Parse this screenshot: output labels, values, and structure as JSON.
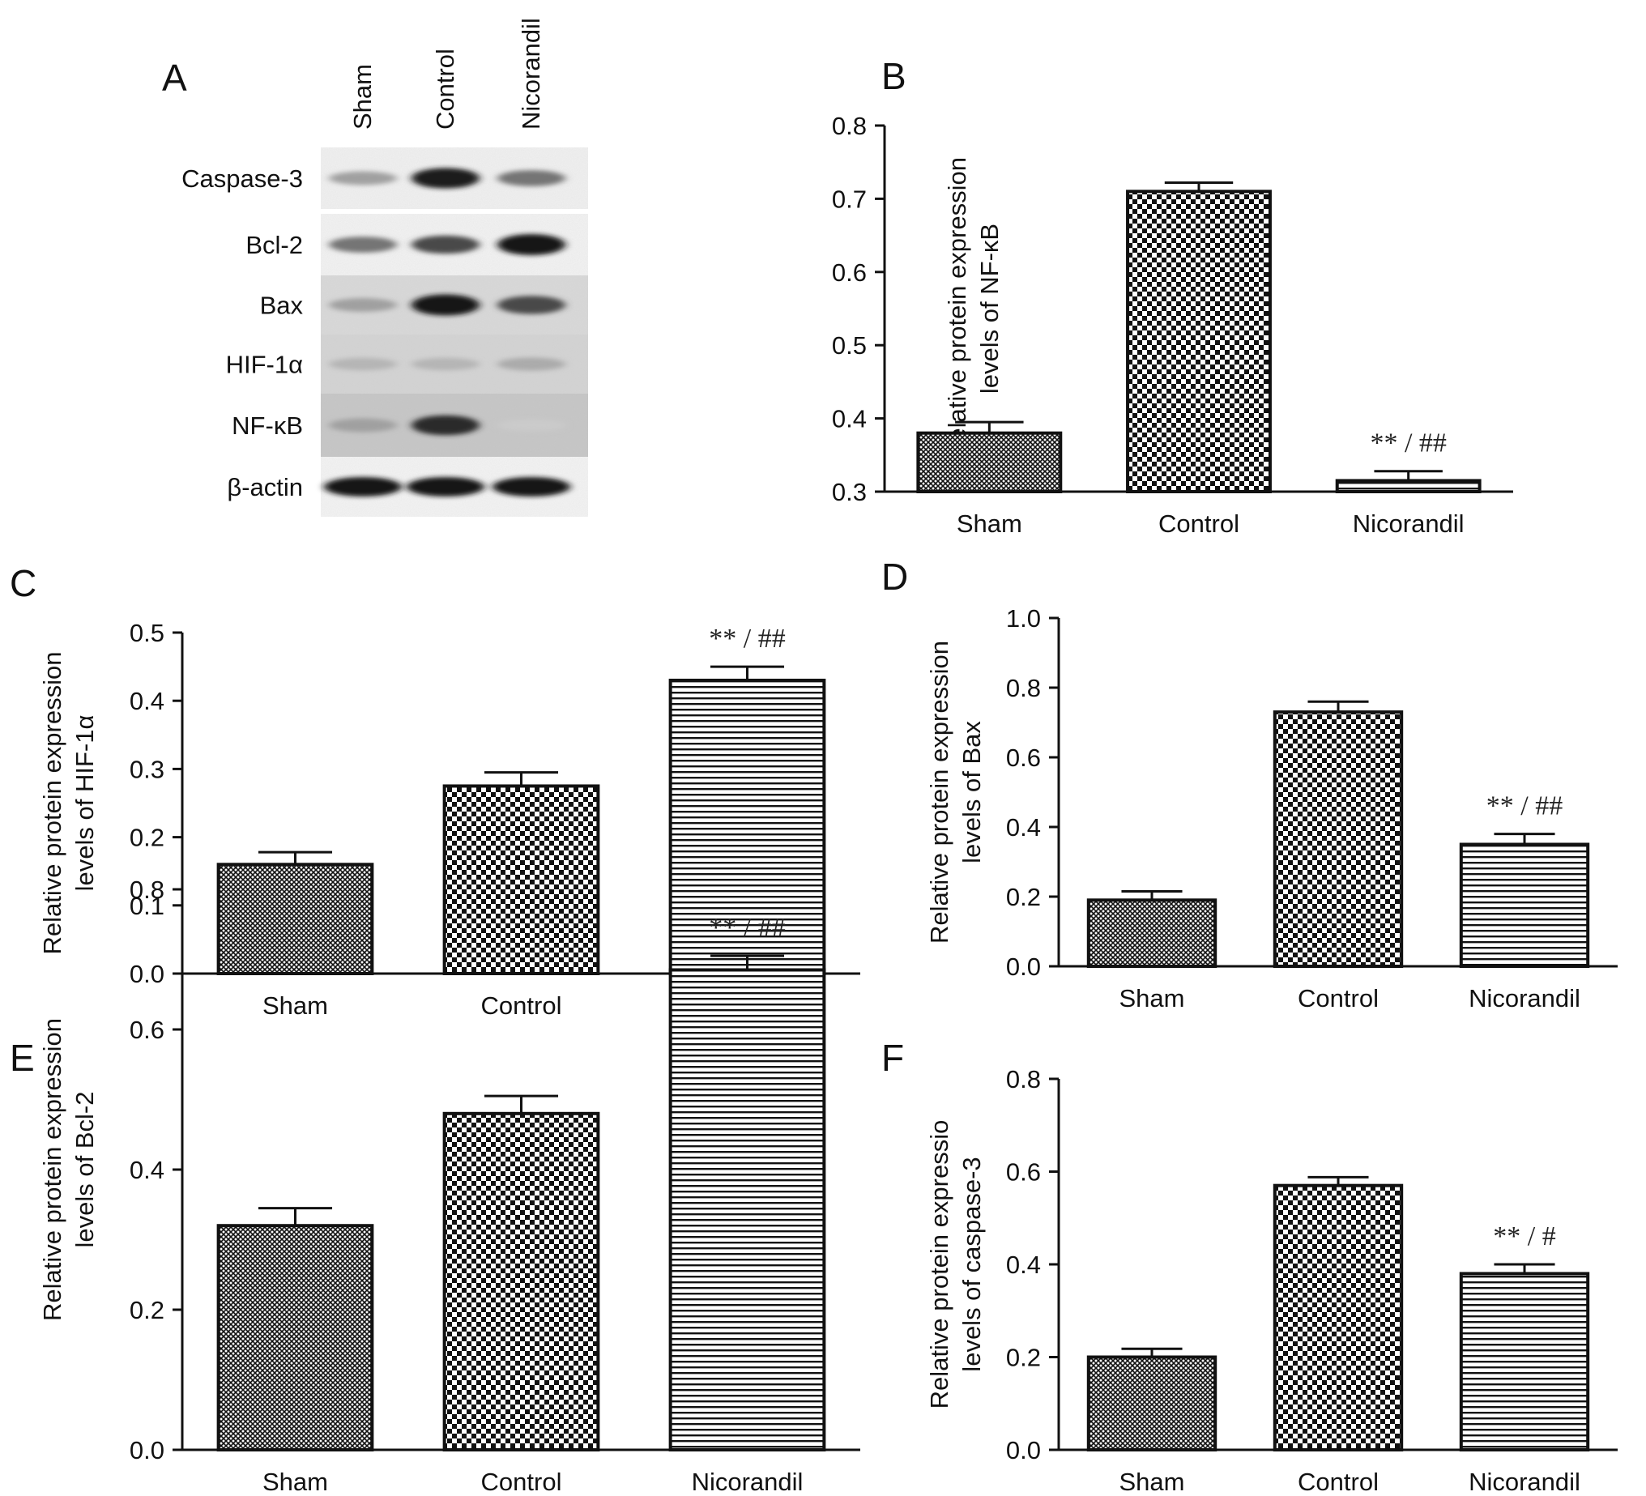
{
  "blot": {
    "letter": "A",
    "lanes": [
      "Sham",
      "Control",
      "Nicorandil"
    ],
    "proteins": [
      "Caspase-3",
      "Bcl-2",
      "Bax",
      "HIF-1α",
      "NF-κB",
      "β-actin"
    ],
    "band_intensity": [
      [
        0.35,
        0.95,
        0.55
      ],
      [
        0.55,
        0.75,
        1.0
      ],
      [
        0.35,
        1.0,
        0.75
      ],
      [
        0.25,
        0.25,
        0.3
      ],
      [
        0.35,
        0.9,
        0.15
      ],
      [
        1.0,
        1.0,
        1.0
      ]
    ]
  },
  "chart_data": [
    {
      "letter": "B",
      "type": "bar",
      "categories": [
        "Sham",
        "Control",
        "Nicorandil"
      ],
      "values": [
        0.38,
        0.71,
        0.315
      ],
      "errors": [
        0.015,
        0.012,
        0.013
      ],
      "ylabel": [
        "Relative protein expression",
        "levels of NF-κB"
      ],
      "ylim": [
        0.3,
        0.8
      ],
      "yticks": [
        "0.3",
        "0.4",
        "0.5",
        "0.6",
        "0.7",
        "0.8"
      ],
      "annotations": [
        "",
        "",
        "** / ##"
      ],
      "patterns": [
        "crosshatch",
        "checker",
        "stripes"
      ]
    },
    {
      "letter": "C",
      "type": "bar",
      "categories": [
        "Sham",
        "Control",
        "Nicorandil"
      ],
      "values": [
        0.16,
        0.275,
        0.43
      ],
      "errors": [
        0.018,
        0.02,
        0.02
      ],
      "ylabel": [
        "Relative protein expression",
        "levels of HIF-1α"
      ],
      "ylim": [
        0.0,
        0.5
      ],
      "yticks": [
        "0.0",
        "0.1",
        "0.2",
        "0.3",
        "0.4",
        "0.5"
      ],
      "annotations": [
        "",
        "",
        "** / ##"
      ],
      "patterns": [
        "crosshatch",
        "checker",
        "stripes"
      ]
    },
    {
      "letter": "D",
      "type": "bar",
      "categories": [
        "Sham",
        "Control",
        "Nicorandil"
      ],
      "values": [
        0.19,
        0.73,
        0.35
      ],
      "errors": [
        0.025,
        0.03,
        0.03
      ],
      "ylabel": [
        "Relative protein expression",
        "levels of Bax"
      ],
      "ylim": [
        0.0,
        1.0
      ],
      "yticks": [
        "0.0",
        "0.2",
        "0.4",
        "0.6",
        "0.8",
        "1.0"
      ],
      "annotations": [
        "",
        "",
        "** / ##"
      ],
      "patterns": [
        "crosshatch",
        "checker",
        "stripes"
      ]
    },
    {
      "letter": "E",
      "type": "bar",
      "categories": [
        "Sham",
        "Control",
        "Nicorandil"
      ],
      "values": [
        0.32,
        0.48,
        0.685
      ],
      "errors": [
        0.025,
        0.025,
        0.02
      ],
      "ylabel": [
        "Relative protein expression",
        "levels of Bcl-2"
      ],
      "ylim": [
        0.0,
        0.8
      ],
      "yticks": [
        "0.0",
        "0.2",
        "0.4",
        "0.6",
        "0.8"
      ],
      "annotations": [
        "",
        "",
        "** / ##"
      ],
      "patterns": [
        "crosshatch",
        "checker",
        "stripes"
      ]
    },
    {
      "letter": "F",
      "type": "bar",
      "categories": [
        "Sham",
        "Control",
        "Nicorandil"
      ],
      "values": [
        0.2,
        0.57,
        0.38
      ],
      "errors": [
        0.018,
        0.018,
        0.02
      ],
      "ylabel": [
        "Relative protein expressio",
        "levels of caspase-3"
      ],
      "ylim": [
        0.0,
        0.8
      ],
      "yticks": [
        "0.0",
        "0.2",
        "0.4",
        "0.6",
        "0.8"
      ],
      "annotations": [
        "",
        "",
        "** / #"
      ],
      "patterns": [
        "crosshatch",
        "checker",
        "stripes"
      ]
    }
  ]
}
